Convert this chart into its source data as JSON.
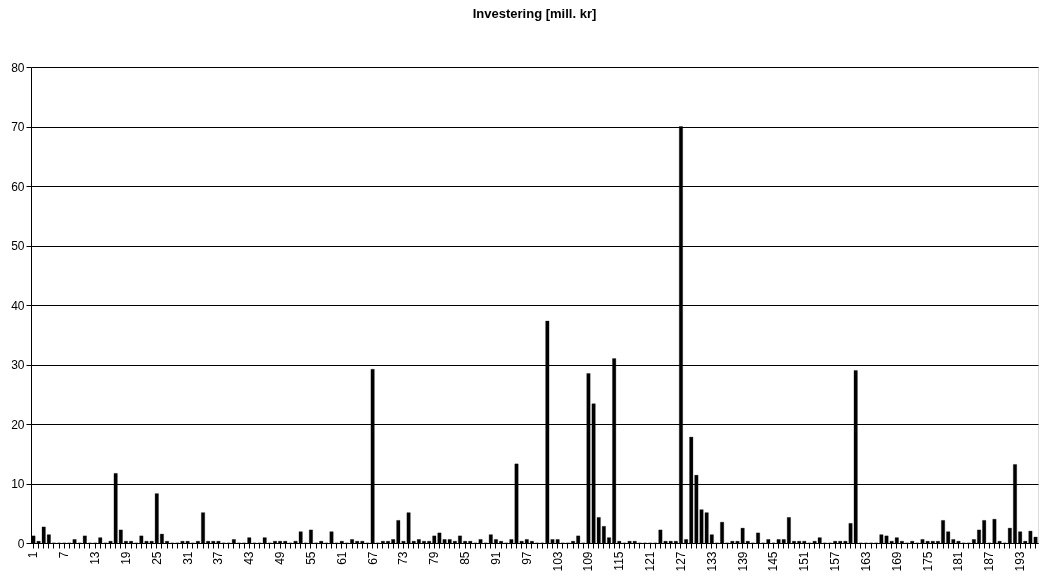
{
  "chart_data": {
    "type": "bar",
    "title": "Investering [mill. kr]",
    "categories": [
      "1",
      null,
      null,
      null,
      null,
      null,
      "7",
      null,
      null,
      null,
      null,
      null,
      "13",
      null,
      null,
      null,
      null,
      null,
      "19",
      null,
      null,
      null,
      null,
      null,
      "25",
      null,
      null,
      null,
      null,
      null,
      "31",
      null,
      null,
      null,
      null,
      null,
      "37",
      null,
      null,
      null,
      null,
      null,
      "43",
      null,
      null,
      null,
      null,
      null,
      "49",
      null,
      null,
      null,
      null,
      null,
      "55",
      null,
      null,
      null,
      null,
      null,
      "61",
      null,
      null,
      null,
      null,
      null,
      "67",
      null,
      null,
      null,
      null,
      null,
      "73",
      null,
      null,
      null,
      null,
      null,
      "79",
      null,
      null,
      null,
      null,
      null,
      "85",
      null,
      null,
      null,
      null,
      null,
      "91",
      null,
      null,
      null,
      null,
      null,
      "97",
      null,
      null,
      null,
      null,
      null,
      "103",
      null,
      null,
      null,
      null,
      null,
      "109",
      null,
      null,
      null,
      null,
      null,
      "115",
      null,
      null,
      null,
      null,
      null,
      "121",
      null,
      null,
      null,
      null,
      null,
      "127",
      null,
      null,
      null,
      null,
      null,
      "133",
      null,
      null,
      null,
      null,
      null,
      "139",
      null,
      null,
      null,
      null,
      null,
      "145",
      null,
      null,
      null,
      null,
      null,
      "151",
      null,
      null,
      null,
      null,
      null,
      "157",
      null,
      null,
      null,
      null,
      null,
      "163",
      null,
      null,
      null,
      null,
      null,
      "169",
      null,
      null,
      null,
      null,
      null,
      "175",
      null,
      null,
      null,
      null,
      null,
      "181",
      null,
      null,
      null,
      null,
      null,
      "187",
      null,
      null,
      null,
      null,
      null,
      "193",
      null,
      null,
      null
    ],
    "values": [
      1.2,
      0.3,
      2.7,
      1.4,
      0,
      0,
      0,
      0,
      0.6,
      0,
      1.2,
      0,
      0,
      0.9,
      0,
      0.3,
      11.7,
      2.2,
      0.3,
      0.3,
      0,
      1.2,
      0.3,
      0.3,
      8.3,
      1.5,
      0.3,
      0,
      0,
      0.3,
      0.3,
      0,
      0.3,
      5.1,
      0.3,
      0.3,
      0.3,
      0,
      0,
      0.6,
      0,
      0,
      0.9,
      0,
      0,
      0.9,
      0,
      0.3,
      0.3,
      0.3,
      0,
      0.3,
      1.9,
      0,
      2.2,
      0,
      0.3,
      0,
      1.9,
      0,
      0.3,
      0,
      0.6,
      0.3,
      0.3,
      0,
      29.2,
      0,
      0.3,
      0.3,
      0.6,
      3.8,
      0.3,
      5.1,
      0.3,
      0.6,
      0.3,
      0.3,
      1.2,
      1.7,
      0.6,
      0.6,
      0.3,
      1.2,
      0.3,
      0.3,
      0,
      0.6,
      0,
      1.4,
      0.6,
      0.3,
      0,
      0.6,
      13.3,
      0.3,
      0.6,
      0.3,
      0,
      0,
      37.3,
      0.6,
      0.6,
      0,
      0,
      0.3,
      1.2,
      0,
      28.5,
      23.4,
      4.3,
      2.8,
      0.9,
      31,
      0.3,
      0,
      0.3,
      0.3,
      0,
      0,
      0,
      0,
      2.2,
      0.3,
      0.3,
      0.3,
      70,
      0.6,
      17.8,
      11.4,
      5.6,
      5.1,
      1.4,
      0,
      3.5,
      0,
      0.3,
      0.3,
      2.5,
      0.3,
      0,
      1.7,
      0,
      0.6,
      0,
      0.6,
      0.6,
      4.3,
      0.3,
      0.3,
      0.3,
      0,
      0.3,
      0.9,
      0,
      0,
      0.3,
      0.3,
      0.3,
      3.3,
      29,
      0,
      0,
      0,
      0,
      1.4,
      1.2,
      0.3,
      0.9,
      0.3,
      0,
      0.3,
      0,
      0.6,
      0.3,
      0.3,
      0.3,
      3.8,
      1.9,
      0.6,
      0.3,
      0,
      0,
      0.6,
      2.2,
      3.8,
      0,
      4.0,
      0.3,
      0,
      2.5,
      13.2,
      1.9,
      0.3,
      2.0,
      1.0
    ],
    "color": "#000000",
    "ylim": [
      0,
      80
    ],
    "yticks": [
      0,
      10,
      20,
      30,
      40,
      50,
      60,
      70,
      80
    ],
    "grid": "y"
  }
}
